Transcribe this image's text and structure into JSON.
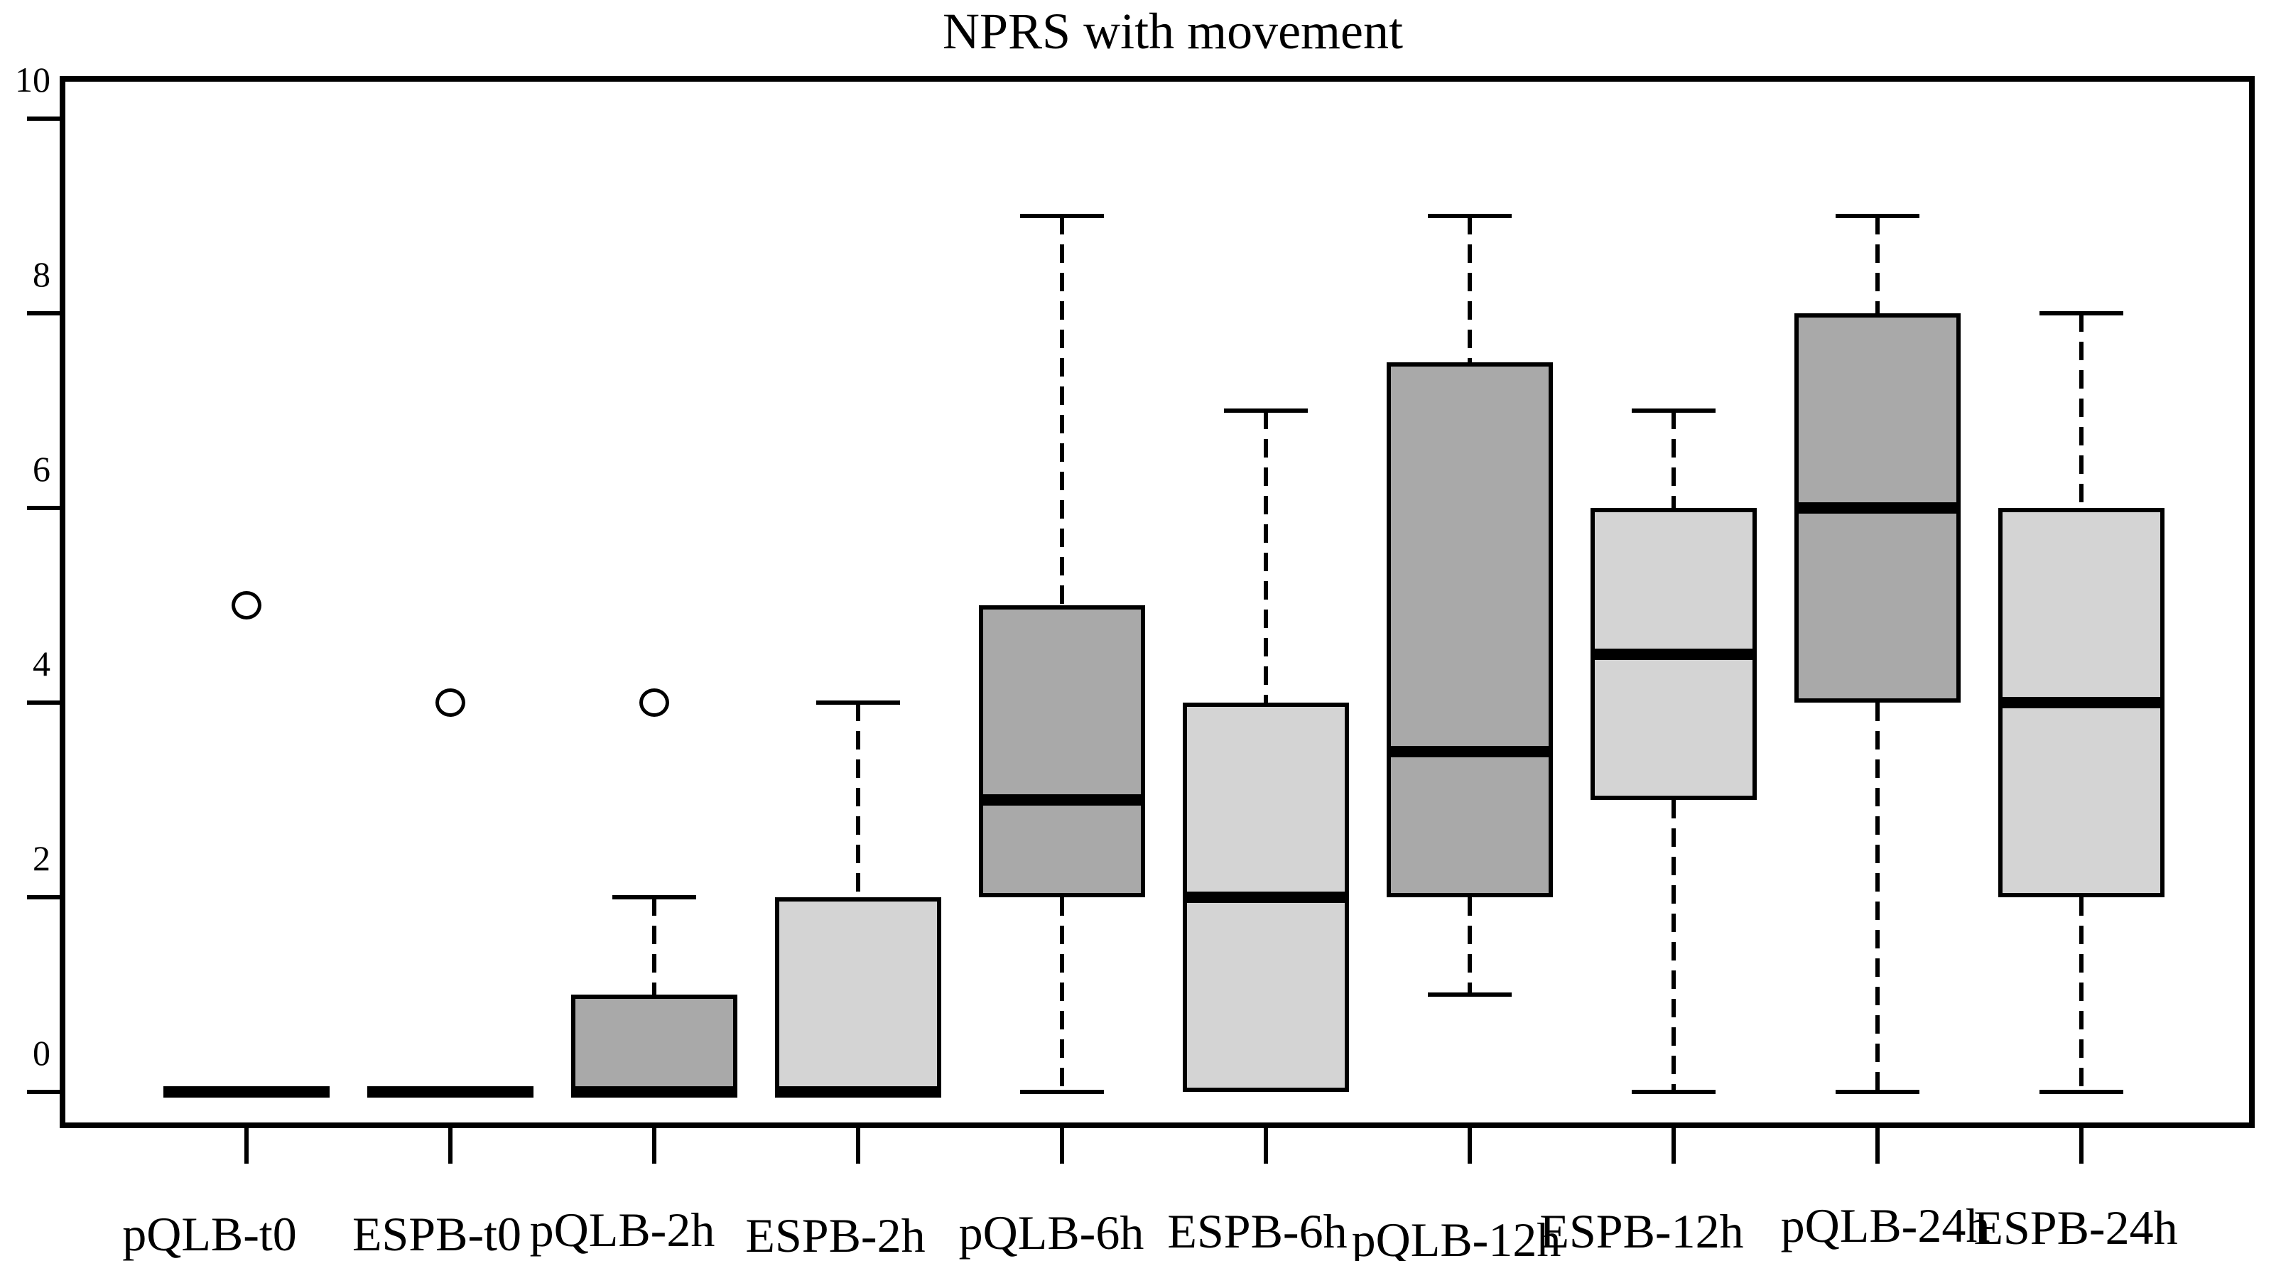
{
  "figure": {
    "title": "NPRS with movement",
    "background_color": "#ffffff",
    "line_color": "#000000"
  },
  "chart_data": {
    "type": "boxplot",
    "title": "NPRS with movement",
    "xlabel": "",
    "ylabel": "",
    "ylim": [
      -0.37,
      10.44
    ],
    "y_ticks": [
      0,
      2,
      4,
      6,
      8,
      10
    ],
    "y_tick_labels": [
      "0",
      "2",
      "4",
      "6",
      "8",
      "10"
    ],
    "grid": false,
    "legend": "none",
    "group_colors": {
      "pQLB": "#a9a9a9",
      "ESPB": "#d4d4d4"
    },
    "categories": [
      "pQLB-t0",
      "ESPB-t0",
      "pQLB-2h",
      "ESPB-2h",
      "pQLB-6h",
      "ESPB-6h",
      "pQLB-12h",
      "ESPB-12h",
      "pQLB-24h",
      "ESPB-24h"
    ],
    "series": [
      {
        "label": "pQLB-t0",
        "group": "pQLB",
        "whisker_low": 0,
        "q1": 0,
        "median": 0,
        "q3": 0,
        "whisker_high": 0,
        "outliers": [
          5
        ]
      },
      {
        "label": "ESPB-t0",
        "group": "ESPB",
        "whisker_low": 0,
        "q1": 0,
        "median": 0,
        "q3": 0,
        "whisker_high": 0,
        "outliers": [
          4
        ]
      },
      {
        "label": "pQLB-2h",
        "group": "pQLB",
        "whisker_low": 0,
        "q1": 0,
        "median": 0,
        "q3": 1,
        "whisker_high": 2,
        "outliers": [
          4
        ]
      },
      {
        "label": "ESPB-2h",
        "group": "ESPB",
        "whisker_low": 0,
        "q1": 0,
        "median": 0,
        "q3": 2,
        "whisker_high": 4,
        "outliers": []
      },
      {
        "label": "pQLB-6h",
        "group": "pQLB",
        "whisker_low": 0,
        "q1": 2,
        "median": 3,
        "q3": 5,
        "whisker_high": 9,
        "outliers": []
      },
      {
        "label": "ESPB-6h",
        "group": "ESPB",
        "whisker_low": 0,
        "q1": 0,
        "median": 2,
        "q3": 4,
        "whisker_high": 7,
        "outliers": []
      },
      {
        "label": "pQLB-12h",
        "group": "pQLB",
        "whisker_low": 1,
        "q1": 2,
        "median": 3.5,
        "q3": 7.5,
        "whisker_high": 9,
        "outliers": []
      },
      {
        "label": "ESPB-12h",
        "group": "ESPB",
        "whisker_low": 0,
        "q1": 3,
        "median": 4.5,
        "q3": 6,
        "whisker_high": 7,
        "outliers": []
      },
      {
        "label": "pQLB-24h",
        "group": "pQLB",
        "whisker_low": 0,
        "q1": 4,
        "median": 6,
        "q3": 8,
        "whisker_high": 9,
        "outliers": []
      },
      {
        "label": "ESPB-24h",
        "group": "ESPB",
        "whisker_low": 0,
        "q1": 2,
        "median": 4,
        "q3": 6,
        "whisker_high": 8,
        "outliers": []
      }
    ]
  }
}
